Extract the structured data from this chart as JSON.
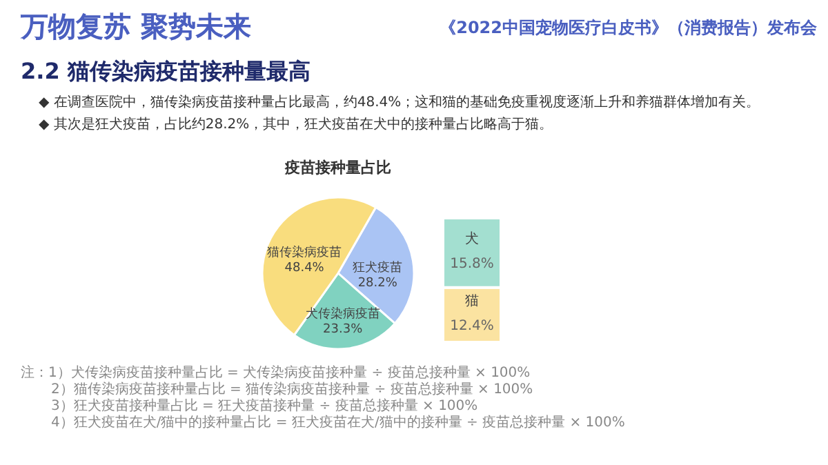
{
  "chart_data": [
    {
      "type": "pie",
      "title": "疫苗接种量占比",
      "categories": [
        "狂犬疫苗",
        "犬传染病疫苗",
        "猫传染病疫苗"
      ],
      "values": [
        28.2,
        23.3,
        48.4
      ],
      "value_labels": [
        "28.2%",
        "23.3%",
        "48.4%"
      ],
      "colors": [
        "#aac4f4",
        "#80d2c0",
        "#f9dd7e"
      ],
      "annotations": [
        "万物复苏  聚势未来",
        "《2022中国宠物医疗白皮书》（消费报告）发布会",
        "2.2 猫传染病疫苗接种量最高",
        "◆  在调查医院中，猫传染病疫苗接种量占比最高，约48.4%；这和猫的基础免疫重视度逐渐上升和养猫群体增加有关。",
        "◆  其次是狂犬疫苗，占比约28.2%，其中，狂犬疫苗在犬中的接种量占比略高于猫。",
        "注：1）犬传染病疫苗接种量占比 = 犬传染病疫苗接种量 ÷ 疫苗总接种量 × 100%",
        "2）猫传染病疫苗接种量占比 = 猫传染病疫苗接种量 ÷ 疫苗总接种量 × 100%",
        "3）狂犬疫苗接种量占比 = 狂犬疫苗接种量 ÷ 疫苗总接种量 × 100%",
        "4）狂犬疫苗在犬/猫中的接种量占比 = 狂犬疫苗在犬/猫中的接种量 ÷ 疫苗总接种量 × 100%"
      ]
    },
    {
      "type": "bar",
      "stacked": true,
      "categories": [
        null
      ],
      "series": [
        {
          "name": "猫",
          "color": "#fbe3a1",
          "values": [
            12.4
          ],
          "value_labels": [
            "12.4%"
          ]
        },
        {
          "name": "犬",
          "color": "#a3dfd0",
          "values": [
            15.8
          ],
          "value_labels": [
            "15.8%"
          ]
        }
      ]
    }
  ]
}
